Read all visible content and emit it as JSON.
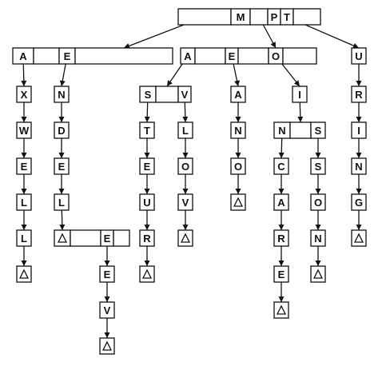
{
  "nodes": {
    "root": {
      "cells": [
        "",
        "M",
        "",
        "P",
        "T",
        ""
      ]
    },
    "a_e": {
      "cells": [
        "A",
        "",
        "E",
        "",
        ""
      ]
    },
    "aeo": {
      "cells": [
        "A",
        "",
        "E",
        "",
        "O",
        ""
      ]
    },
    "u": {
      "cells": [
        "U"
      ]
    },
    "ax": {
      "cells": [
        "X"
      ]
    },
    "aw": {
      "cells": [
        "W"
      ]
    },
    "ae1": {
      "cells": [
        "E"
      ]
    },
    "al1": {
      "cells": [
        "L"
      ]
    },
    "al2": {
      "cells": [
        "L"
      ]
    },
    "aend": {
      "cells": [
        "Δ"
      ]
    },
    "en": {
      "cells": [
        "N"
      ]
    },
    "ed": {
      "cells": [
        "D"
      ]
    },
    "ee": {
      "cells": [
        "E"
      ]
    },
    "el": {
      "cells": [
        "L"
      ]
    },
    "end_e": {
      "cells": [
        "Δ",
        "",
        "E",
        ""
      ]
    },
    "ee2": {
      "cells": [
        "E"
      ]
    },
    "ev": {
      "cells": [
        "V"
      ]
    },
    "eend": {
      "cells": [
        "Δ"
      ]
    },
    "sv": {
      "cells": [
        "S",
        "",
        "V"
      ]
    },
    "st": {
      "cells": [
        "T"
      ]
    },
    "se": {
      "cells": [
        "E"
      ]
    },
    "su": {
      "cells": [
        "U"
      ]
    },
    "sr": {
      "cells": [
        "R"
      ]
    },
    "send": {
      "cells": [
        "Δ"
      ]
    },
    "vl": {
      "cells": [
        "L"
      ]
    },
    "vo": {
      "cells": [
        "O"
      ]
    },
    "vv": {
      "cells": [
        "V"
      ]
    },
    "vend": {
      "cells": [
        "Δ"
      ]
    },
    "ea": {
      "cells": [
        "A"
      ]
    },
    "ean": {
      "cells": [
        "N"
      ]
    },
    "eao": {
      "cells": [
        "O"
      ]
    },
    "eaend": {
      "cells": [
        "Δ"
      ]
    },
    "oi": {
      "cells": [
        "I"
      ]
    },
    "ns": {
      "cells": [
        "N",
        "",
        "S"
      ]
    },
    "nc": {
      "cells": [
        "C"
      ]
    },
    "na": {
      "cells": [
        "A"
      ]
    },
    "nr": {
      "cells": [
        "R"
      ]
    },
    "ne": {
      "cells": [
        "E"
      ]
    },
    "nend": {
      "cells": [
        "Δ"
      ]
    },
    "ss": {
      "cells": [
        "S"
      ]
    },
    "so": {
      "cells": [
        "O"
      ]
    },
    "sn": {
      "cells": [
        "N"
      ]
    },
    "snend": {
      "cells": [
        "Δ"
      ]
    },
    "ur": {
      "cells": [
        "R"
      ]
    },
    "ui": {
      "cells": [
        "I"
      ]
    },
    "un": {
      "cells": [
        "N"
      ]
    },
    "ug": {
      "cells": [
        "G"
      ]
    },
    "uend": {
      "cells": [
        "Δ"
      ]
    }
  }
}
